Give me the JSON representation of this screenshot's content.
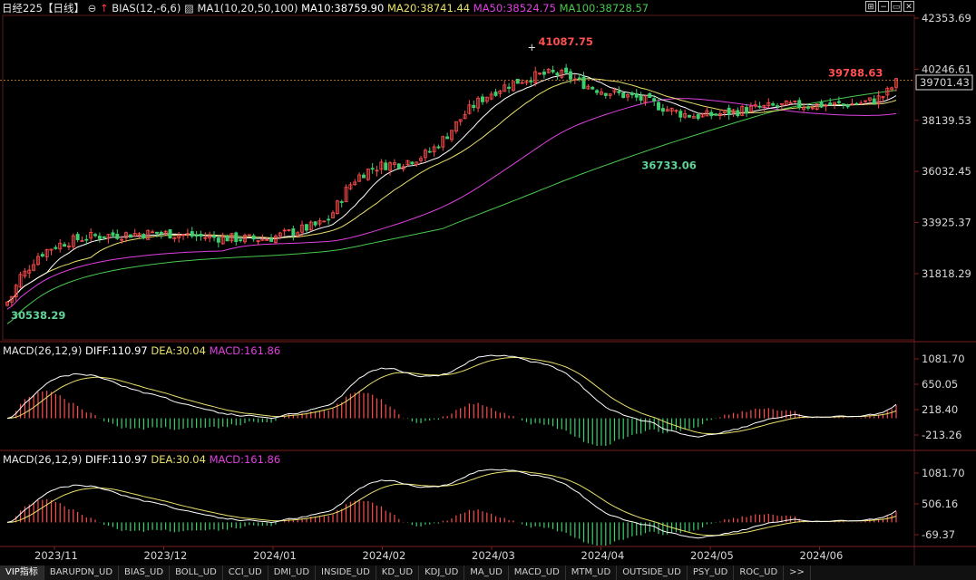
{
  "header": {
    "symbol": "日经225",
    "period": "【日线】",
    "bias": "BIAS(12,-6,6)",
    "ma_set": "MA1(10,20,50,100)",
    "ma10": "MA10:38759.90",
    "ma20": "MA20:38741.44",
    "ma50": "MA50:38524.75",
    "ma100": "MA100:38728.57"
  },
  "colors": {
    "up": "#ff4d4d",
    "down": "#3ccf6e",
    "ma10": "#ffffff",
    "ma20": "#e8e06a",
    "ma50": "#e040e0",
    "ma100": "#49c84c",
    "dif": "#ffffff",
    "dea": "#e8e06a",
    "macd_label": "#e040e0",
    "annot_red": "#ff5050",
    "annot_green": "#5fd49a"
  },
  "toolbar_icons": [
    "grid-icon",
    "minus-icon",
    "window-icon",
    "close-icon"
  ],
  "chart_data": [
    {
      "type": "candlestick",
      "y_ticks": [
        "42353.69",
        "40246.61",
        "38139.53",
        "36032.45",
        "33925.37",
        "31818.29"
      ],
      "ylim": [
        29200,
        42353.69
      ],
      "current_price": "39701.43",
      "ref_line": 39788.63,
      "annotations": [
        {
          "text": "41087.75",
          "value": 41087.75,
          "date": "2024-03-22"
        },
        {
          "text": "39788.63",
          "value": 39788.63,
          "date": "2024-06-28"
        },
        {
          "text": "36733.06",
          "value": 36733.06,
          "date": "2024-04-19"
        },
        {
          "text": "30538.29",
          "value": 30538.29,
          "date": "2023-10-31"
        }
      ],
      "x_ticks": [
        "2023/11",
        "2023/12",
        "2024/01",
        "2024/02",
        "2024/03",
        "2024/04",
        "2024/05",
        "2024/06"
      ],
      "close": [
        30650,
        30900,
        31300,
        31720,
        31850,
        32100,
        32350,
        32560,
        32680,
        32790,
        32890,
        32960,
        33030,
        33100,
        33150,
        33190,
        33240,
        33280,
        33310,
        33340,
        33360,
        33380,
        33390,
        33400,
        33410,
        33420,
        33430,
        33440,
        33450,
        33460,
        33470,
        33470,
        33480,
        33490,
        33490,
        33480,
        33470,
        33460,
        33450,
        33440,
        33420,
        33400,
        33380,
        33360,
        33340,
        33330,
        33320,
        33310,
        33300,
        33290,
        33290,
        33280,
        33270,
        33270,
        33260,
        33260,
        33250,
        33250,
        33260,
        33260,
        33300,
        33350,
        33400,
        33450,
        33500,
        33550,
        33600,
        33650,
        33700,
        33750,
        33800,
        33860,
        33940,
        34100,
        34350,
        34650,
        34950,
        35250,
        35500,
        35700,
        35850,
        35980,
        36080,
        36160,
        36220,
        36270,
        36300,
        36330,
        36350,
        36380,
        36420,
        36470,
        36520,
        36580,
        36650,
        36740,
        36860,
        37000,
        37170,
        37350,
        37550,
        37770,
        37990,
        38200,
        38400,
        38580,
        38750,
        38900,
        39040,
        39160,
        39270,
        39370,
        39460,
        39540,
        39610,
        39680,
        39750,
        39810,
        39870,
        39920,
        39960,
        40000,
        40030,
        40050,
        40060,
        40050,
        40020,
        39970,
        39900,
        39820,
        39730,
        39640,
        39560,
        39490,
        39430,
        39380,
        39340,
        39300,
        39260,
        39220,
        39180,
        39140,
        39100,
        39060,
        39010,
        38950,
        38880,
        38810,
        38740,
        38670,
        38600,
        38540,
        38480,
        38430,
        38390,
        38360,
        38340,
        38330,
        38330,
        38340,
        38360,
        38380,
        38410,
        38440,
        38470,
        38500,
        38530,
        38560,
        38590,
        38610,
        38630,
        38650,
        38670,
        38690,
        38710,
        38720,
        38730,
        38740,
        38750,
        38750,
        38760,
        38760,
        38770,
        38770,
        38770,
        38780,
        38780,
        38780,
        38790,
        38790,
        38800,
        38810,
        38820,
        38840,
        38860,
        38890,
        38930,
        38980,
        39050,
        39150,
        39300,
        39500,
        39701
      ],
      "legend": [
        {
          "label": "MA10:38759.90"
        },
        {
          "label": "MA20:38741.44"
        },
        {
          "label": "MA50:38524.75"
        },
        {
          "label": "MA100:38728.57"
        }
      ]
    },
    {
      "type": "macd",
      "title": "MACD(26,12,9)",
      "dif": "DIFF:110.97",
      "dea": "DEA:30.04",
      "macd": "MACD:161.86",
      "y_ticks": [
        "1081.70",
        "650.05",
        "218.40",
        "-213.26"
      ]
    },
    {
      "type": "macd",
      "title": "MACD(26,12,9)",
      "dif": "DIFF:110.97",
      "dea": "DEA:30.04",
      "macd": "MACD:161.86",
      "y_ticks": [
        "1081.70",
        "506.16",
        "-69.37"
      ]
    }
  ],
  "tabs": [
    "VIP指标",
    "BARUPDN_UD",
    "BIAS_UD",
    "BOLL_UD",
    "CCI_UD",
    "DMI_UD",
    "INSIDE_UD",
    "KD_UD",
    "KDJ_UD",
    "MA_UD",
    "MACD_UD",
    "MTM_UD",
    "OUTSIDE_UD",
    "PSY_UD",
    "ROC_UD",
    ">>"
  ]
}
